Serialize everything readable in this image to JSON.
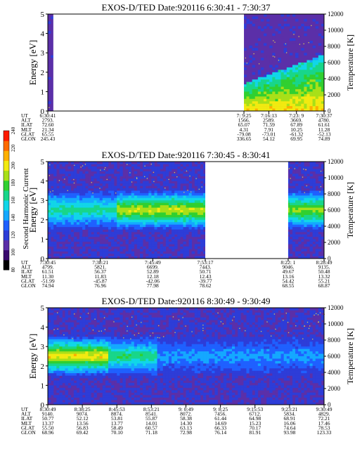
{
  "colors": {
    "background_field": "#5b2fa8",
    "data_gap": "#ffffff",
    "scale": [
      "#000000",
      "#3a0a6e",
      "#5b2fa8",
      "#2d3dd8",
      "#1f60ff",
      "#14a8ff",
      "#11d6e8",
      "#18d68a",
      "#30d030",
      "#a8e018",
      "#f2ea10",
      "#ffb000",
      "#ff6a00",
      "#ff1a00"
    ],
    "temperature_marks": "#d9c85a"
  },
  "colorbar": {
    "label": "Second Harmonic Current",
    "ticks": [
      "80",
      "100",
      "120",
      "140",
      "160",
      "180",
      "200",
      "220",
      "240"
    ],
    "range": [
      80,
      240
    ]
  },
  "chart_data": [
    {
      "type": "heatmap",
      "title": "EXOS-D/TED   Date:920116  6:30:41 - 7:30:37",
      "ylabel": "Energy [eV]",
      "y2label": "Temperature [K]",
      "ylim": [
        0,
        5
      ],
      "y2lim": [
        0,
        12000
      ],
      "yticks": [
        "0",
        "1",
        "2",
        "3",
        "4",
        "5"
      ],
      "y2ticks": [
        "0",
        "2000",
        "4000",
        "6000",
        "8000",
        "10000",
        "12000"
      ],
      "gaps": [
        [
          0.02,
          0.71
        ]
      ],
      "enhanced_region": {
        "x": [
          0.71,
          1.0
        ],
        "level": "high"
      },
      "rows": [
        {
          "label": "UT",
          "values": [
            "6:30:41",
            "7: 9:25",
            "7:16:13",
            "7:23: 9",
            "7:30:37"
          ]
        },
        {
          "label": "ALT",
          "values": [
            "2793.",
            "1566.",
            "2589.",
            "3669.",
            "4780."
          ]
        },
        {
          "label": "ILAT",
          "values": [
            "72.60",
            "65.07",
            "71.59",
            "67.89",
            "61.61"
          ]
        },
        {
          "label": "MLT",
          "values": [
            "21.34",
            "4.31",
            "7.91",
            "10.25",
            "11.28"
          ]
        },
        {
          "label": "GLAT",
          "values": [
            "65.55",
            "-79.08",
            "-73.01",
            "-61.32",
            "-52.13"
          ]
        },
        {
          "label": "GLON",
          "values": [
            "245.43",
            "336.65",
            "54.12",
            "69.95",
            "74.89"
          ]
        }
      ]
    },
    {
      "type": "heatmap",
      "title": "EXOS-D/TED   Date:920116  7:30:45 - 8:30:41",
      "ylabel": "Energy [eV]",
      "y2label": "Temperature [K]",
      "ylim": [
        0,
        5
      ],
      "y2lim": [
        0,
        12000
      ],
      "yticks": [
        "0",
        "1",
        "2",
        "3",
        "4",
        "5"
      ],
      "y2ticks": [
        "0",
        "2000",
        "4000",
        "6000",
        "8000",
        "10000",
        "12000"
      ],
      "gaps": [
        [
          0.57,
          0.87
        ]
      ],
      "band_center_ev": 2.5,
      "rows": [
        {
          "label": "UT",
          "values": [
            "7:30:45",
            "7:38:21",
            "7:45:49",
            "7:53:17",
            "8:22: 1",
            "8:28:49"
          ]
        },
        {
          "label": "ALT",
          "values": [
            "4799.",
            "5821.",
            "6699.",
            "7443.",
            "9046.",
            "9135."
          ]
        },
        {
          "label": "ILAT",
          "values": [
            "61.51",
            "56.37",
            "52.89",
            "50.71",
            "49.67",
            "50.48"
          ]
        },
        {
          "label": "MLT",
          "values": [
            "11.30",
            "11.83",
            "12.18",
            "12.43",
            "13.16",
            "13.32"
          ]
        },
        {
          "label": "GLAT",
          "values": [
            "-51.99",
            "-45.87",
            "-42.06",
            "-39.77",
            "54.42",
            "55.21"
          ]
        },
        {
          "label": "GLON",
          "values": [
            "74.94",
            "76.96",
            "77.98",
            "78.62",
            "68.55",
            "68.87"
          ]
        }
      ]
    },
    {
      "type": "heatmap",
      "title": "EXOS-D/TED   Date:920116  8:30:49 - 9:30:49",
      "ylabel": "Energy [eV]",
      "y2label": "Temperature [K]",
      "ylim": [
        0,
        5
      ],
      "y2lim": [
        0,
        12000
      ],
      "yticks": [
        "0",
        "1",
        "2",
        "3",
        "4",
        "5"
      ],
      "y2ticks": [
        "0",
        "2000",
        "4000",
        "6000",
        "8000",
        "10000",
        "12000"
      ],
      "gaps": [],
      "band_center_ev": 2.5,
      "rows": [
        {
          "label": "UT",
          "values": [
            "8:30:49",
            "8:38:25",
            "8:45:53",
            "8:53:21",
            "9: 0:49",
            "9: 8:25",
            "9:15:53",
            "9:23:21",
            "9:30:49"
          ]
        },
        {
          "label": "ALT",
          "values": [
            "9140.",
            "9074.",
            "8874.",
            "8541.",
            "8072.",
            "7456.",
            "6712.",
            "5834.",
            "4829."
          ]
        },
        {
          "label": "ILAT",
          "values": [
            "50.77",
            "52.12",
            "53.81",
            "55.87",
            "58.38",
            "61.44",
            "64.98",
            "68.91",
            "72.21"
          ]
        },
        {
          "label": "MLT",
          "values": [
            "13.37",
            "13.56",
            "13.77",
            "14.01",
            "14.30",
            "14.69",
            "15.23",
            "16.06",
            "17.46"
          ]
        },
        {
          "label": "GLAT",
          "values": [
            "55.50",
            "56.83",
            "58.49",
            "60.57",
            "63.13",
            "66.33",
            "70.17",
            "74.64",
            "78.53"
          ]
        },
        {
          "label": "GLON",
          "values": [
            "68.96",
            "69.42",
            "70.10",
            "71.18",
            "72.98",
            "76.14",
            "81.91",
            "93.98",
            "123.33"
          ]
        }
      ]
    }
  ]
}
